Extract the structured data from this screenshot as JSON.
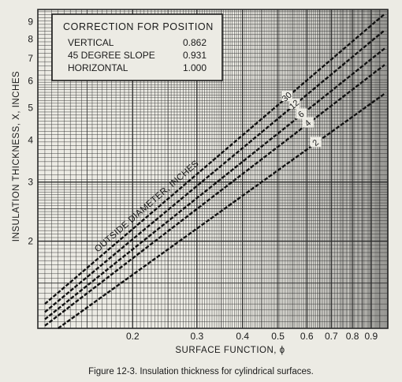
{
  "chart_data": {
    "type": "line",
    "title": "",
    "xlabel": "SURFACE FUNCTION, ϕ",
    "ylabel": "INSULATION THICKNESS, X, INCHES",
    "x_scale": "log",
    "y_scale": "log",
    "xlim": [
      0.11,
      1.0
    ],
    "ylim": [
      1.1,
      9.8
    ],
    "x_ticks": [
      "0.2",
      "0.3",
      "0.4",
      "0.5",
      "0.6",
      "0.7",
      "0.8",
      "0.9"
    ],
    "y_ticks": [
      "2",
      "3",
      "4",
      "5",
      "6",
      "7",
      "8",
      "9"
    ],
    "grid": true,
    "curve_group_label": "OUTSIDE DIAMETER, INCHES",
    "series": [
      {
        "name": "30",
        "x": [
          0.115,
          0.98
        ],
        "y": [
          1.3,
          9.5
        ]
      },
      {
        "name": "12",
        "x": [
          0.115,
          0.98
        ],
        "y": [
          1.23,
          8.5
        ]
      },
      {
        "name": "6",
        "x": [
          0.115,
          0.98
        ],
        "y": [
          1.17,
          7.5
        ]
      },
      {
        "name": "4",
        "x": [
          0.115,
          0.98
        ],
        "y": [
          1.12,
          6.7
        ]
      },
      {
        "name": "2",
        "x": [
          0.125,
          0.98
        ],
        "y": [
          1.1,
          5.5
        ]
      }
    ],
    "annotation": {
      "heading": "CORRECTION FOR POSITION",
      "rows": [
        {
          "label": "VERTICAL",
          "value": "0.862"
        },
        {
          "label": "45 DEGREE SLOPE",
          "value": "0.931"
        },
        {
          "label": "HORIZONTAL",
          "value": "1.000"
        }
      ]
    }
  },
  "caption": "Figure 12-3. Insulation thickness for cylindrical surfaces.",
  "colors": {
    "grid": "#2a2a2a",
    "curve": "#111111",
    "paper": "#ecebe4"
  }
}
